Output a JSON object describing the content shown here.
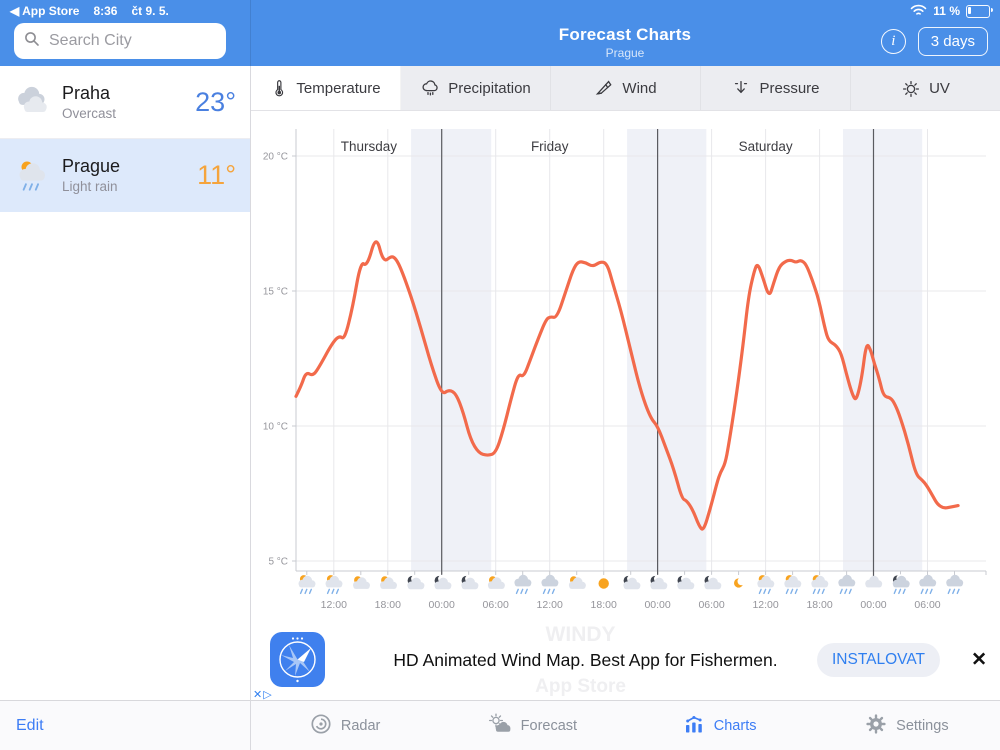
{
  "status_bar": {
    "back_app": "◀ App Store",
    "time": "8:36",
    "date": "čt 9. 5.",
    "battery_percent": "11 %"
  },
  "header": {
    "title": "Forecast Charts",
    "subtitle": "Prague",
    "info_glyph": "i",
    "days_button": "3 days"
  },
  "sidebar": {
    "search_placeholder": "Search City",
    "edit_label": "Edit",
    "cities": [
      {
        "name": "Praha",
        "condition": "Overcast",
        "temp": "23°",
        "temp_color": "#4a80e0",
        "icon": "cloud",
        "selected": false
      },
      {
        "name": "Prague",
        "condition": "Light rain",
        "temp": "11°",
        "temp_color": "#f5a43c",
        "icon": "sun-rain",
        "selected": true
      }
    ]
  },
  "tabs": [
    {
      "label": "Temperature",
      "icon": "thermometer",
      "active": true
    },
    {
      "label": "Precipitation",
      "icon": "precip-cloud",
      "active": false
    },
    {
      "label": "Wind",
      "icon": "windsock",
      "active": false
    },
    {
      "label": "Pressure",
      "icon": "pressure-arrow",
      "active": false
    },
    {
      "label": "UV",
      "icon": "uv-sun",
      "active": false
    }
  ],
  "chart_data": {
    "type": "line",
    "title": "3-day temperature forecast, Prague",
    "unit": "°C",
    "day_labels": [
      "Thursday",
      "Friday",
      "Saturday"
    ],
    "day_label_centers_h": [
      8.1,
      28.2,
      52.2
    ],
    "y_tick_labels": [
      "20 °C",
      "15 °C",
      "10 °C",
      "5 °C"
    ],
    "y_ticks_c": [
      20,
      15,
      10,
      5
    ],
    "ylim": [
      4.6,
      21
    ],
    "x_hours_span": 76.7,
    "midnight_lines_h": [
      16.2,
      40.2,
      64.2
    ],
    "six_hour_grid_h": [
      4.2,
      10.2,
      16.2,
      22.2,
      28.2,
      34.2,
      40.2,
      46.2,
      52.2,
      58.2,
      64.2,
      70.2
    ],
    "six_hour_labels": [
      "12:00",
      "18:00",
      "00:00",
      "06:00",
      "12:00",
      "18:00",
      "00:00",
      "06:00",
      "12:00",
      "18:00",
      "00:00",
      "06:00"
    ],
    "night_bands_h": [
      [
        12.8,
        21.7
      ],
      [
        36.8,
        45.6
      ],
      [
        60.8,
        69.6
      ]
    ],
    "line_color": "#f26a4b",
    "series": [
      {
        "name": "Temperature",
        "points": [
          [
            0,
            11.1
          ],
          [
            0.6,
            11.5
          ],
          [
            1.1,
            12
          ],
          [
            1.9,
            11.85
          ],
          [
            2.6,
            12.2
          ],
          [
            4,
            13.05
          ],
          [
            4.8,
            13.35
          ],
          [
            5.4,
            13.2
          ],
          [
            6.3,
            14.4
          ],
          [
            7.2,
            16.1
          ],
          [
            7.9,
            15.9
          ],
          [
            8.9,
            17.1
          ],
          [
            9.7,
            16.05
          ],
          [
            10.6,
            16.3
          ],
          [
            11.1,
            16.2
          ],
          [
            11.7,
            15.8
          ],
          [
            12.8,
            14.8
          ],
          [
            13.9,
            13.6
          ],
          [
            15,
            12.3
          ],
          [
            16.2,
            11.15
          ],
          [
            17,
            11.35
          ],
          [
            17.8,
            11.2
          ],
          [
            18.6,
            10.5
          ],
          [
            19.4,
            9.5
          ],
          [
            20.3,
            9
          ],
          [
            21.3,
            8.9
          ],
          [
            22.2,
            9
          ],
          [
            23,
            9.8
          ],
          [
            23.9,
            11
          ],
          [
            24.7,
            11.95
          ],
          [
            25.3,
            11.8
          ],
          [
            26.1,
            12.5
          ],
          [
            27,
            13.3
          ],
          [
            27.8,
            13.95
          ],
          [
            28.3,
            14.05
          ],
          [
            29,
            14
          ],
          [
            30,
            15
          ],
          [
            30.8,
            15.8
          ],
          [
            31.4,
            16.1
          ],
          [
            32.2,
            16.05
          ],
          [
            33,
            15.9
          ],
          [
            33.9,
            16.1
          ],
          [
            34.6,
            16
          ],
          [
            35.2,
            15.3
          ],
          [
            36.1,
            14.3
          ],
          [
            37.2,
            12.8
          ],
          [
            38.3,
            11.3
          ],
          [
            39.4,
            10.3
          ],
          [
            40.2,
            10
          ],
          [
            41.1,
            9.2
          ],
          [
            42,
            8.4
          ],
          [
            42.9,
            7.3
          ],
          [
            43.4,
            7.25
          ],
          [
            44.1,
            6.9
          ],
          [
            44.8,
            6.3
          ],
          [
            45.3,
            6.1
          ],
          [
            46.1,
            7
          ],
          [
            46.8,
            7.9
          ],
          [
            47.2,
            8.3
          ],
          [
            47.7,
            8.6
          ],
          [
            48.1,
            9.3
          ],
          [
            48.9,
            11
          ],
          [
            49.7,
            13
          ],
          [
            50.3,
            14.8
          ],
          [
            50.9,
            15.7
          ],
          [
            51.3,
            16.05
          ],
          [
            51.9,
            15.5
          ],
          [
            52.6,
            14.75
          ],
          [
            53.1,
            15.3
          ],
          [
            53.7,
            15.9
          ],
          [
            54.4,
            16.1
          ],
          [
            55,
            16.15
          ],
          [
            55.6,
            16.05
          ],
          [
            56.1,
            16.15
          ],
          [
            56.7,
            16
          ],
          [
            57.4,
            15.4
          ],
          [
            58.1,
            14.7
          ],
          [
            58.8,
            13.6
          ],
          [
            59.2,
            13.15
          ],
          [
            60,
            13
          ],
          [
            60.6,
            12.7
          ],
          [
            61.2,
            11.9
          ],
          [
            61.9,
            11.1
          ],
          [
            62.3,
            10.95
          ],
          [
            62.9,
            11.8
          ],
          [
            63.4,
            13.1
          ],
          [
            63.9,
            12.8
          ],
          [
            64.3,
            12.3
          ],
          [
            64.8,
            11.8
          ],
          [
            65.3,
            11.1
          ],
          [
            66.1,
            11.05
          ],
          [
            66.6,
            10.8
          ],
          [
            67.2,
            10.3
          ],
          [
            68.1,
            9.3
          ],
          [
            68.9,
            8.2
          ],
          [
            69.6,
            8
          ],
          [
            70.1,
            7.8
          ],
          [
            70.8,
            7.4
          ],
          [
            71.3,
            7.1
          ],
          [
            72,
            6.95
          ],
          [
            72.8,
            7
          ],
          [
            73.6,
            7.05
          ]
        ]
      }
    ],
    "icons_h_start": 1.2,
    "icons_h_step": 3,
    "icons": [
      "sun-rain",
      "sun-rain",
      "part-sun",
      "part-sun",
      "moon-cloud",
      "moon-cloud",
      "moon-cloud",
      "part-sun",
      "rain",
      "rain",
      "part-sun",
      "sun",
      "moon-cloud",
      "moon-cloud",
      "moon-cloud",
      "moon-cloud",
      "moon",
      "sun-rain",
      "sun-rain",
      "sun-rain",
      "rain",
      "cloud",
      "moon-rain",
      "rain",
      "rain"
    ]
  },
  "ad": {
    "watermark_top": "WINDY",
    "watermark_bottom": "App Store",
    "text": "HD Animated Wind Map. Best App for Fishermen.",
    "cta": "INSTALOVAT",
    "close_glyph": "✕",
    "adchoices_glyph": "✕▷"
  },
  "bottom_nav": [
    {
      "label": "Radar",
      "icon": "radar",
      "active": false
    },
    {
      "label": "Forecast",
      "icon": "forecast",
      "active": false
    },
    {
      "label": "Charts",
      "icon": "charts",
      "active": true
    },
    {
      "label": "Settings",
      "icon": "gear",
      "active": false
    }
  ],
  "colors": {
    "header_blue": "#4a8fe8",
    "line": "#f26a4b",
    "selected_row": "#dde9fb",
    "night_band": "#eff1f7",
    "active_blue": "#3d7df5"
  }
}
